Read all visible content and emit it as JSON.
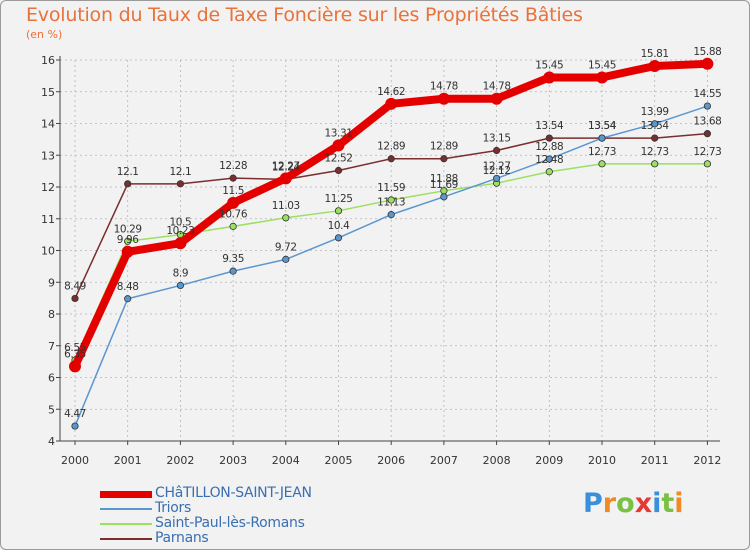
{
  "title": "Evolution du Taux de Taxe Foncière sur les Propriétés Bâties",
  "unit_label": "(en %)",
  "brand": "Proxiti",
  "brand_colors": [
    "#3a8fd9",
    "#f08a24",
    "#7ac143",
    "#e53935",
    "#3a8fd9",
    "#7ac143",
    "#f08a24"
  ],
  "chart_data": {
    "type": "line",
    "x": [
      "2000",
      "2001",
      "2002",
      "2003",
      "2004",
      "2005",
      "2006",
      "2007",
      "2008",
      "2009",
      "2010",
      "2011",
      "2012"
    ],
    "ylim": [
      4,
      16
    ],
    "yticks": [
      "4",
      "5",
      "6",
      "7",
      "8",
      "9",
      "10",
      "11",
      "12",
      "13",
      "14",
      "15",
      "16"
    ],
    "grid": true,
    "legend_placement": "bottom-left",
    "series": [
      {
        "name": "CHâTILLON-SAINT-JEAN",
        "color": "#e50000",
        "values": [
          6.35,
          9.96,
          10.23,
          11.5,
          12.27,
          13.31,
          14.62,
          14.78,
          14.78,
          15.45,
          15.45,
          15.81,
          15.88
        ],
        "labels": [
          "6.35",
          "9.96",
          "10.23",
          "11.5",
          "12.27",
          "13.31",
          "14.62",
          "14.78",
          "14.78",
          "15.45",
          "15.45",
          "15.81",
          "15.88"
        ]
      },
      {
        "name": "Triors",
        "color": "#5a96cf",
        "values": [
          4.47,
          8.48,
          8.9,
          9.35,
          9.72,
          10.4,
          11.13,
          11.69,
          12.27,
          12.88,
          13.54,
          13.99,
          14.55
        ],
        "labels": [
          "4.47",
          "8.48",
          "8.9",
          "9.35",
          "9.72",
          "10.4",
          "11.13",
          "11.69",
          "12.27",
          "12.88",
          "13.54",
          "13.99",
          "14.55"
        ]
      },
      {
        "name": "Saint-Paul-lès-Romans",
        "color": "#9be060",
        "values": [
          6.55,
          10.29,
          10.5,
          10.76,
          11.03,
          11.25,
          11.59,
          11.88,
          12.12,
          12.48,
          12.73,
          12.73,
          12.73
        ],
        "labels": [
          "6.55",
          "10.29",
          "10.5",
          "10.76",
          "11.03",
          "11.25",
          "11.59",
          "11.88",
          "12.12",
          "12.48",
          "12.73",
          "12.73",
          "12.73"
        ]
      },
      {
        "name": "Parnans",
        "color": "#7a2e2e",
        "values": [
          8.49,
          12.1,
          12.1,
          12.28,
          12.24,
          12.52,
          12.89,
          12.89,
          13.15,
          13.54,
          13.54,
          13.54,
          13.68
        ],
        "labels": [
          "8.49",
          "12.1",
          "12.1",
          "12.28",
          "12.24",
          "12.52",
          "12.89",
          "12.89",
          "13.15",
          "13.54",
          "13.54",
          "13.54",
          "13.68"
        ]
      }
    ]
  }
}
